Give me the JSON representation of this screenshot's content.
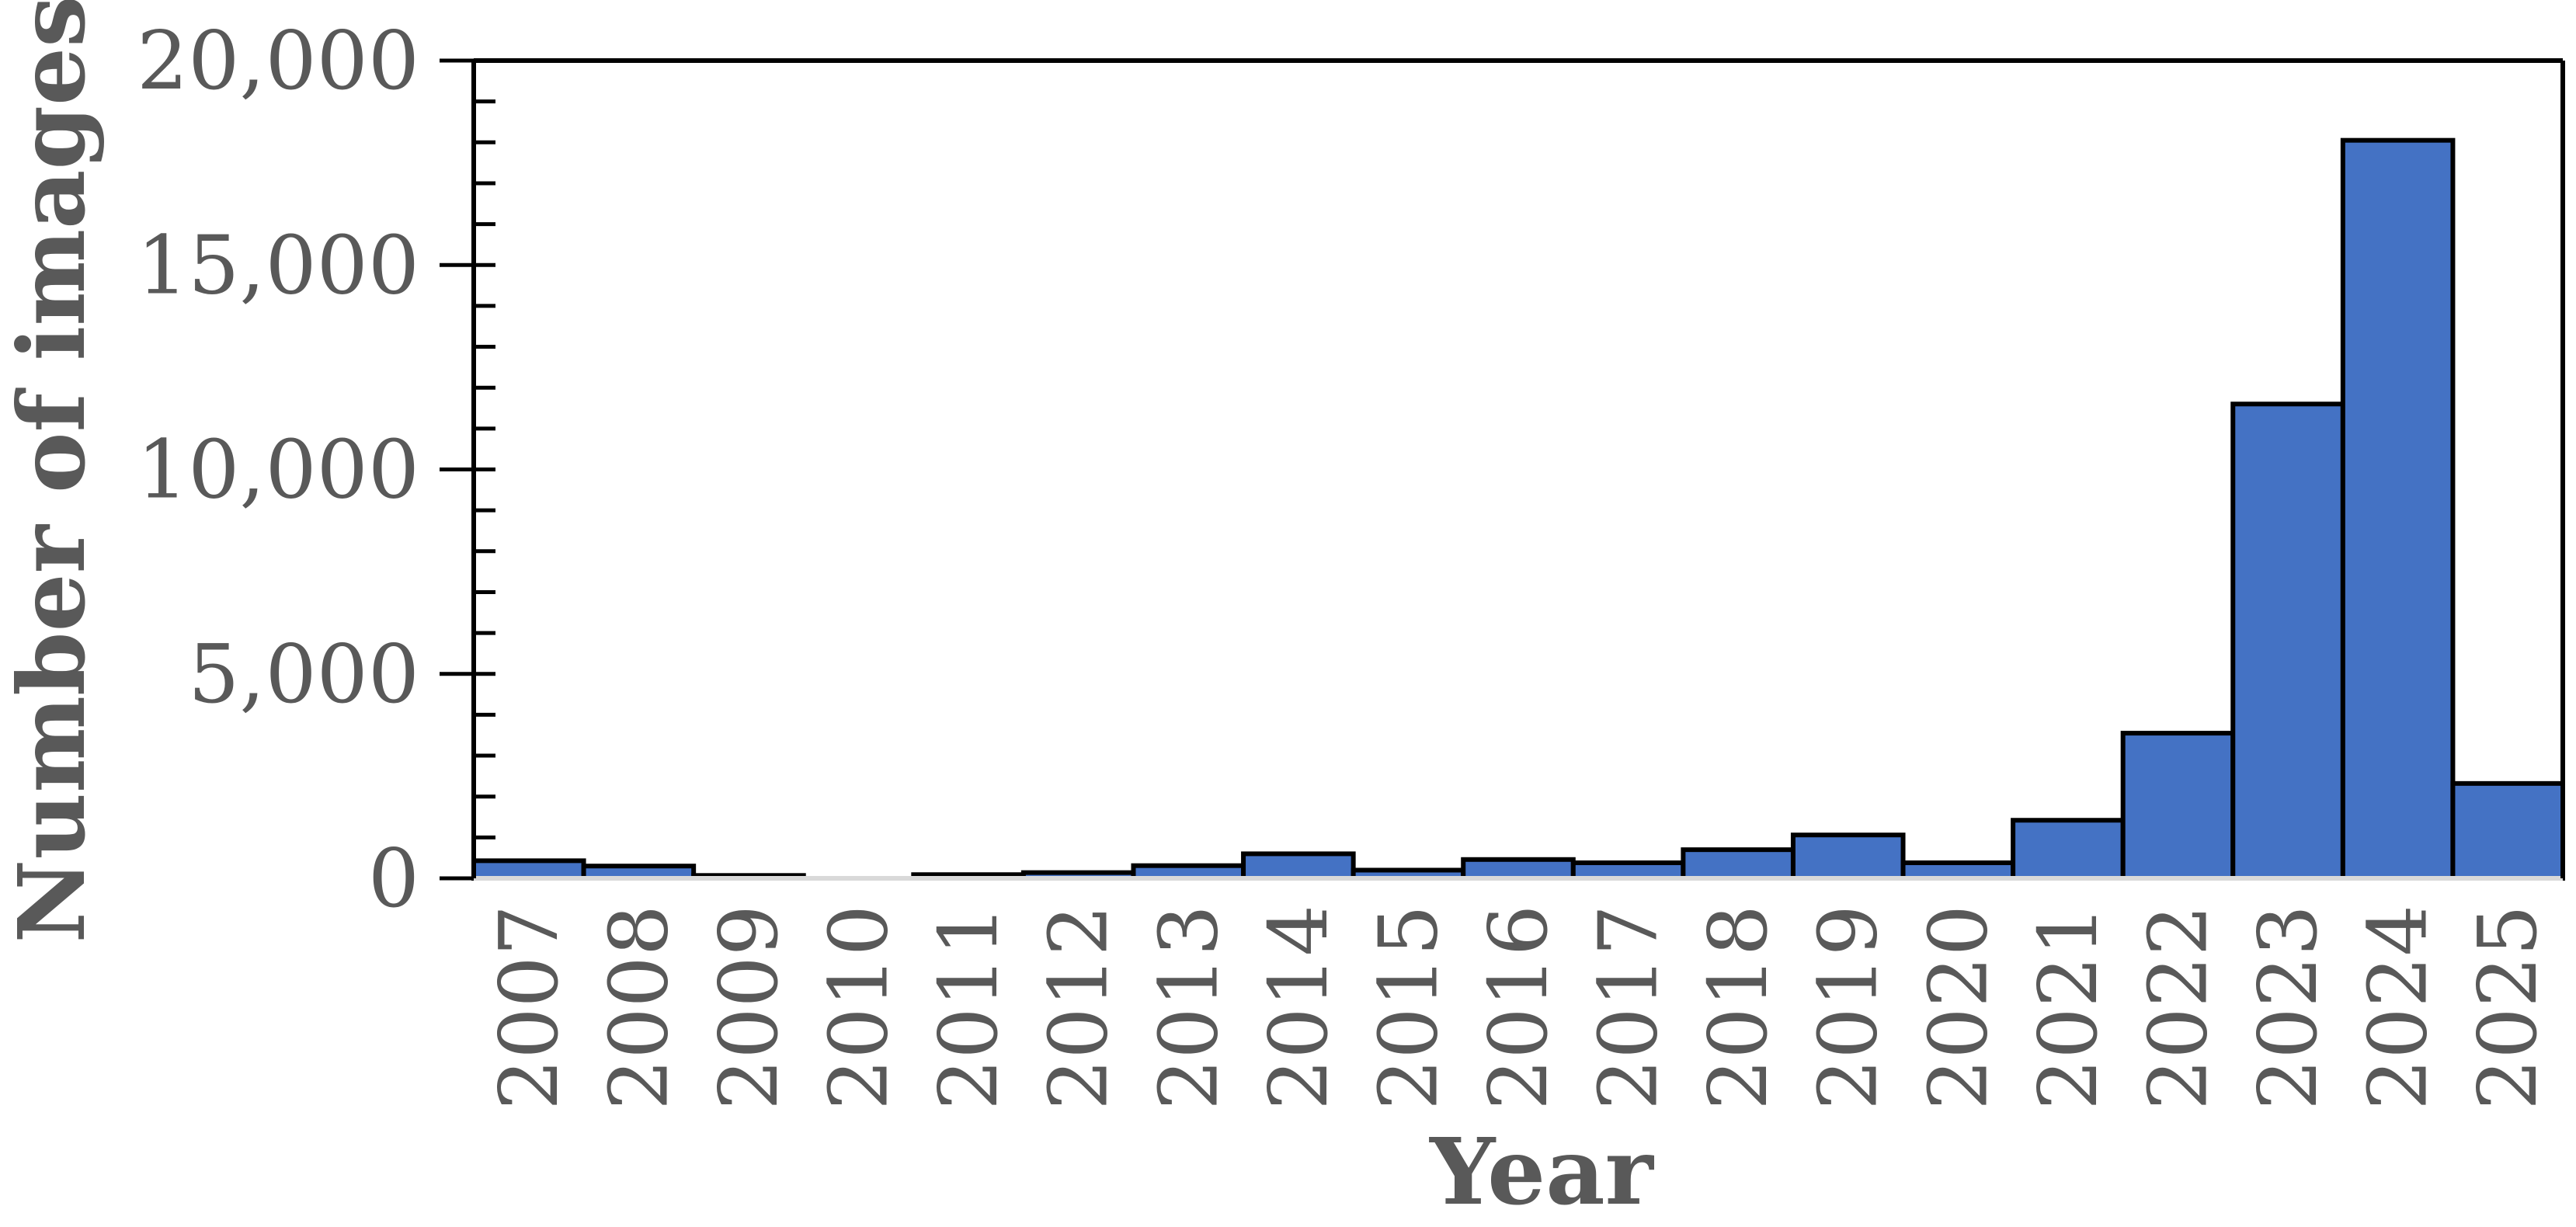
{
  "chart_data": {
    "type": "bar",
    "title": "",
    "xlabel": "Year",
    "ylabel": "Number of images",
    "categories": [
      "2007",
      "2008",
      "2009",
      "2010",
      "2011",
      "2012",
      "2013",
      "2014",
      "2015",
      "2016",
      "2017",
      "2018",
      "2019",
      "2020",
      "2021",
      "2022",
      "2023",
      "2024",
      "2025"
    ],
    "values": [
      430,
      300,
      70,
      0,
      90,
      140,
      310,
      600,
      200,
      460,
      380,
      700,
      1060,
      380,
      1420,
      3550,
      11600,
      18050,
      2320
    ],
    "ylim": [
      0,
      20000
    ],
    "yticks": [
      "0",
      "5,000",
      "10,000",
      "15,000",
      "20,000"
    ],
    "grid": false,
    "legend": "none",
    "colors": {
      "bar": "#4472c4",
      "outline": "#000000",
      "text": "#595959"
    }
  }
}
